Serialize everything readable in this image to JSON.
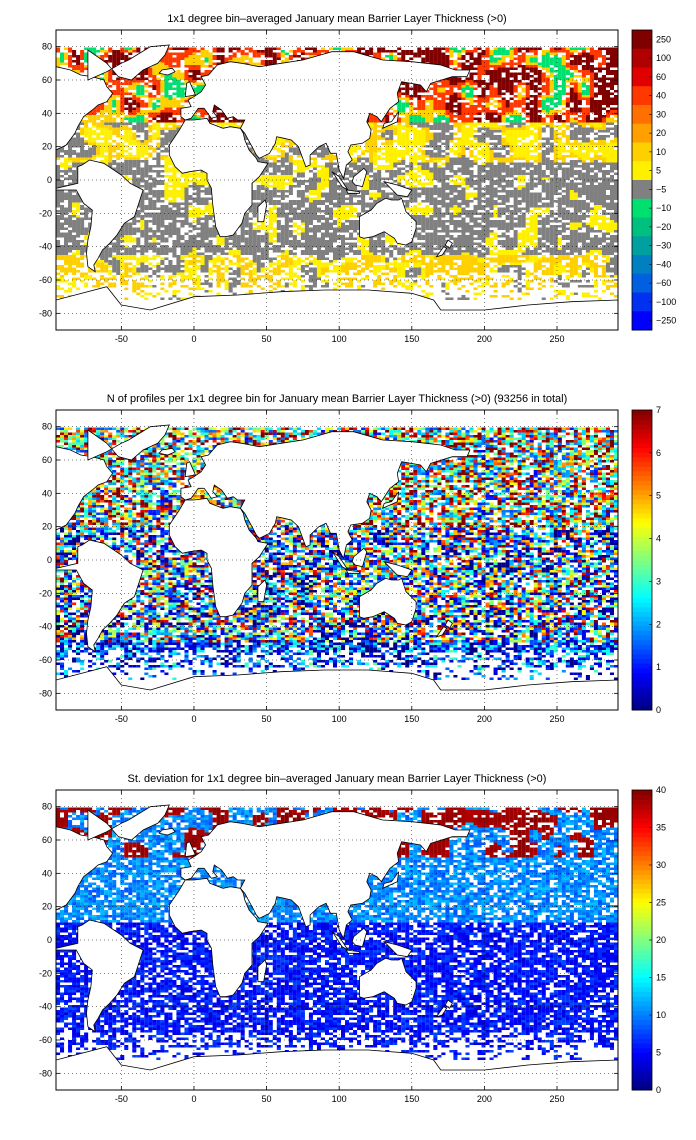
{
  "figure": {
    "panels": [
      {
        "title": "1x1 degree bin–averaged January mean Barrier Layer Thickness (>0)",
        "colorbar": {
          "type": "categorical",
          "labels": [
            "250",
            "100",
            "60",
            "40",
            "30",
            "20",
            "10",
            "5",
            "−5",
            "−10",
            "−20",
            "−30",
            "−40",
            "−60",
            "−100",
            "−250"
          ],
          "colors": [
            "#800000",
            "#b00000",
            "#e00000",
            "#ff3800",
            "#ff7000",
            "#ffa000",
            "#ffd000",
            "#fff000",
            "#808080",
            "#00e070",
            "#00c080",
            "#00a0a0",
            "#0080c0",
            "#0060e0",
            "#0030f0",
            "#0000ff"
          ]
        }
      },
      {
        "title": "N of profiles per 1x1 degree bin for January mean Barrier Layer Thickness (>0) (93256 in total)",
        "colorbar": {
          "type": "continuous",
          "ticks": [
            "0",
            "1",
            "2",
            "3",
            "4",
            "5",
            "6",
            "7"
          ],
          "min": 0,
          "max": 7
        }
      },
      {
        "title": "St. deviation for 1x1 degree bin–averaged January mean Barrier Layer Thickness (>0)",
        "colorbar": {
          "type": "continuous",
          "ticks": [
            "0",
            "5",
            "10",
            "15",
            "20",
            "25",
            "30",
            "35",
            "40"
          ],
          "min": 0,
          "max": 40
        }
      }
    ],
    "axes": {
      "x_ticks": [
        "-50",
        "0",
        "50",
        "100",
        "150",
        "200",
        "250"
      ],
      "x_tick_values": [
        -50,
        0,
        50,
        100,
        150,
        200,
        250
      ],
      "y_ticks": [
        "80",
        "60",
        "40",
        "20",
        "0",
        "-20",
        "-40",
        "-60",
        "-80"
      ],
      "y_tick_values": [
        80,
        60,
        40,
        20,
        0,
        -20,
        -40,
        -60,
        -80
      ],
      "xlim": [
        -95,
        292
      ],
      "ylim": [
        -90,
        90
      ],
      "grid": "dotted"
    },
    "colors": {
      "land": "#ffffff",
      "coastline": "#000000",
      "jet_colormap": [
        "#00008f",
        "#0000ff",
        "#0080ff",
        "#00ffff",
        "#80ff80",
        "#ffff00",
        "#ff8000",
        "#ff0000",
        "#800000"
      ]
    }
  }
}
